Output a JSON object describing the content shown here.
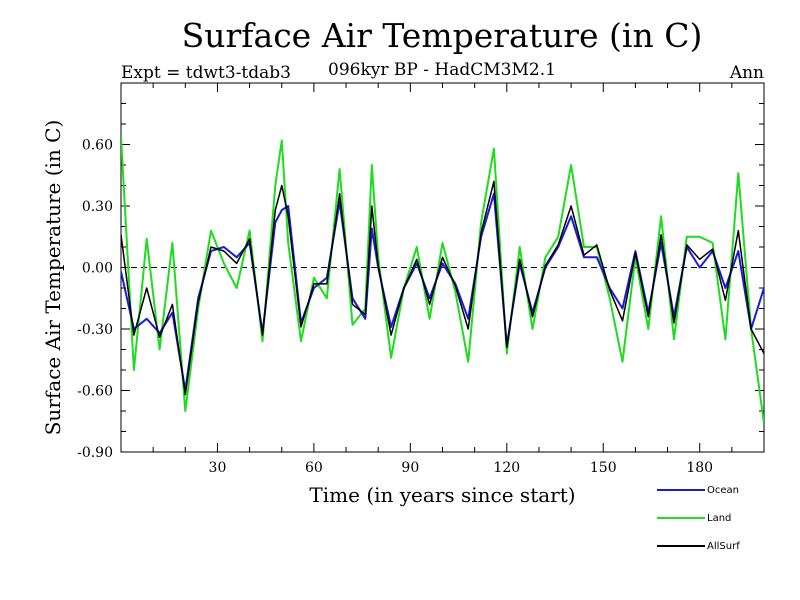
{
  "header": {
    "title": "Surface Air Temperature (in C)",
    "experiment": "Expt = tdwt3-tdab3",
    "subtitle": "096kyr BP - HadCM3M2.1",
    "season": "Ann"
  },
  "chart_data": {
    "type": "line",
    "title": "Surface Air Temperature (in C)",
    "xlabel": "Time (in years since start)",
    "ylabel": "Surface Air Temperature (in C)",
    "xlim": [
      0,
      200
    ],
    "ylim": [
      -0.9,
      0.9
    ],
    "xticks": [
      30,
      60,
      90,
      120,
      150,
      180
    ],
    "xtick_labels": [
      "30",
      "60",
      "90",
      "120",
      "150",
      "180"
    ],
    "yticks": [
      -0.9,
      -0.6,
      -0.3,
      0.0,
      0.3,
      0.6
    ],
    "ytick_labels": [
      "-0.90",
      "-0.60",
      "-0.30",
      "0.00",
      "0.30",
      "0.60"
    ],
    "zero_line": "dashed",
    "legend_position": "bottom-right",
    "series": [
      {
        "name": "Ocean",
        "color": "#1a1adc",
        "x": [
          0,
          4,
          8,
          12,
          16,
          20,
          24,
          28,
          32,
          36,
          40,
          44,
          48,
          50,
          52,
          56,
          60,
          64,
          68,
          72,
          76,
          78,
          80,
          84,
          88,
          92,
          96,
          100,
          104,
          108,
          112,
          116,
          120,
          124,
          128,
          132,
          136,
          140,
          144,
          148,
          152,
          156,
          160,
          164,
          168,
          172,
          176,
          180,
          184,
          188,
          192,
          196,
          200
        ],
        "values": [
          -0.02,
          -0.3,
          -0.25,
          -0.32,
          -0.22,
          -0.6,
          -0.15,
          0.08,
          0.1,
          0.05,
          0.12,
          -0.32,
          0.22,
          0.28,
          0.3,
          -0.27,
          -0.1,
          -0.05,
          0.32,
          -0.15,
          -0.25,
          0.19,
          0.0,
          -0.29,
          -0.1,
          0.02,
          -0.15,
          0.02,
          -0.08,
          -0.25,
          0.15,
          0.36,
          -0.38,
          0.02,
          -0.22,
          0.0,
          0.1,
          0.25,
          0.05,
          0.05,
          -0.1,
          -0.2,
          0.08,
          -0.22,
          0.12,
          -0.24,
          0.1,
          0.0,
          0.08,
          -0.1,
          0.08,
          -0.3,
          -0.1
        ]
      },
      {
        "name": "Land",
        "color": "#1edc1e",
        "x": [
          0,
          4,
          8,
          12,
          16,
          20,
          24,
          28,
          32,
          36,
          40,
          44,
          48,
          50,
          52,
          56,
          60,
          64,
          68,
          72,
          76,
          78,
          80,
          84,
          88,
          92,
          96,
          100,
          104,
          108,
          112,
          116,
          120,
          124,
          128,
          132,
          136,
          140,
          144,
          148,
          152,
          156,
          160,
          164,
          168,
          172,
          176,
          180,
          184,
          188,
          192,
          196,
          200
        ],
        "values": [
          0.64,
          -0.5,
          0.14,
          -0.4,
          0.12,
          -0.7,
          -0.2,
          0.18,
          0.02,
          -0.1,
          0.18,
          -0.36,
          0.4,
          0.62,
          0.12,
          -0.36,
          -0.05,
          -0.15,
          0.48,
          -0.28,
          -0.2,
          0.5,
          0.05,
          -0.44,
          -0.1,
          0.1,
          -0.25,
          0.12,
          -0.12,
          -0.46,
          0.22,
          0.58,
          -0.42,
          0.1,
          -0.3,
          0.05,
          0.15,
          0.5,
          0.1,
          0.1,
          -0.15,
          -0.46,
          0.05,
          -0.3,
          0.25,
          -0.35,
          0.15,
          0.15,
          0.12,
          -0.35,
          0.46,
          -0.3,
          -0.76
        ]
      },
      {
        "name": "AllSurf",
        "color": "#000000",
        "x": [
          0,
          4,
          8,
          12,
          16,
          20,
          24,
          28,
          32,
          36,
          40,
          44,
          48,
          50,
          52,
          56,
          60,
          64,
          68,
          72,
          76,
          78,
          80,
          84,
          88,
          92,
          96,
          100,
          104,
          108,
          112,
          116,
          120,
          124,
          128,
          132,
          136,
          140,
          144,
          148,
          152,
          156,
          160,
          164,
          168,
          172,
          176,
          180,
          184,
          188,
          192,
          196,
          200
        ],
        "values": [
          0.16,
          -0.33,
          -0.1,
          -0.34,
          -0.18,
          -0.62,
          -0.17,
          0.1,
          0.08,
          0.02,
          0.14,
          -0.33,
          0.28,
          0.4,
          0.25,
          -0.29,
          -0.08,
          -0.08,
          0.36,
          -0.18,
          -0.23,
          0.3,
          0.01,
          -0.33,
          -0.1,
          0.04,
          -0.18,
          0.05,
          -0.09,
          -0.3,
          0.17,
          0.42,
          -0.39,
          0.04,
          -0.24,
          0.01,
          0.11,
          0.3,
          0.06,
          0.11,
          -0.11,
          -0.26,
          0.07,
          -0.24,
          0.16,
          -0.27,
          0.11,
          0.04,
          0.09,
          -0.16,
          0.18,
          -0.3,
          -0.42
        ]
      }
    ]
  }
}
